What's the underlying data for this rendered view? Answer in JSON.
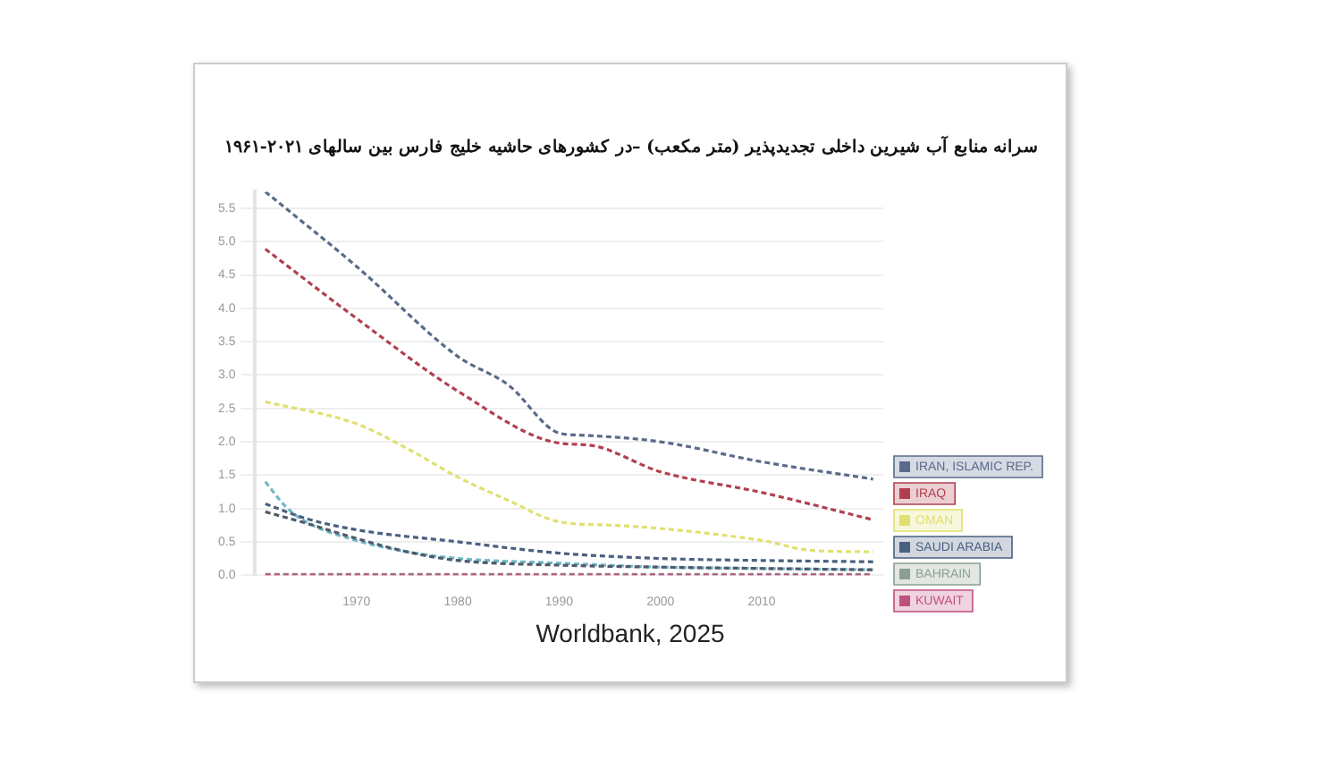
{
  "chart_data": {
    "type": "line",
    "title": "سرانه منابع آب شیرین داخلی تجدیدپذیر (متر مکعب) –در کشورهای حاشیه خلیج فارس  بین سالهای ۲۰۲۱-۱۹۶۱",
    "annotations": [
      "Worldbank, 2025"
    ],
    "xlim": [
      1960,
      2022
    ],
    "xticks": [
      1970,
      1980,
      1990,
      2000,
      2010
    ],
    "ylim": [
      0,
      5.75
    ],
    "yticks": [
      {
        "value": 0,
        "label": "0.0"
      },
      {
        "value": 0.5,
        "label": "0.5"
      },
      {
        "value": 1,
        "label": "1.0"
      },
      {
        "value": 1.5,
        "label": "1.5"
      },
      {
        "value": 2,
        "label": "2.0"
      },
      {
        "value": 2.5,
        "label": "2.5"
      },
      {
        "value": 3,
        "label": "3.0"
      },
      {
        "value": 3.5,
        "label": "3.5"
      },
      {
        "value": 4,
        "label": "4.0"
      },
      {
        "value": 4.5,
        "label": "4.5"
      },
      {
        "value": 5,
        "label": "5.0"
      },
      {
        "value": 5.5,
        "label": "5.5"
      }
    ],
    "grid": "y",
    "legend": "right",
    "marker": "none",
    "line_style": "dashed",
    "series": [
      {
        "name": "IRAN, ISLAMIC REP.",
        "color": "#5a6a8a",
        "x": [
          1961,
          1970,
          1980,
          1985,
          1990,
          1992,
          2000,
          2010,
          2021
        ],
        "values": [
          5.75,
          4.63,
          3.28,
          2.85,
          2.13,
          2.1,
          2.0,
          1.7,
          1.44
        ]
      },
      {
        "name": "IRAQ",
        "color": "#b04050",
        "x": [
          1961,
          1970,
          1980,
          1990,
          1993,
          2000,
          2010,
          2021
        ],
        "values": [
          4.89,
          3.85,
          2.76,
          1.98,
          1.95,
          1.55,
          1.24,
          0.83
        ]
      },
      {
        "name": "OMAN",
        "color": "#e0e070",
        "x": [
          1961,
          1970,
          1975,
          1980,
          1985,
          1990,
          1995,
          2000,
          2010,
          2015,
          2021
        ],
        "values": [
          2.6,
          2.27,
          1.9,
          1.47,
          1.12,
          0.8,
          0.75,
          0.7,
          0.52,
          0.37,
          0.35
        ]
      },
      {
        "color": "#70b8c8",
        "x": [
          1961,
          1963,
          1965,
          1970,
          1975,
          1980,
          1990,
          2000,
          2010,
          2021
        ],
        "values": [
          1.4,
          1.03,
          0.8,
          0.52,
          0.35,
          0.25,
          0.18,
          0.12,
          0.1,
          0.08
        ]
      },
      {
        "name": "SAUDI ARABIA",
        "color": "#4a6080",
        "x": [
          1961,
          1965,
          1970,
          1980,
          1990,
          2000,
          2010,
          2021
        ],
        "values": [
          1.07,
          0.85,
          0.68,
          0.5,
          0.33,
          0.25,
          0.22,
          0.2
        ]
      },
      {
        "color": "#505a6a",
        "x": [
          1961,
          1965,
          1970,
          1975,
          1980,
          1990,
          2000,
          2010,
          2021
        ],
        "values": [
          0.95,
          0.78,
          0.55,
          0.35,
          0.22,
          0.15,
          0.12,
          0.1,
          0.08
        ]
      },
      {
        "name": "BAHRAIN",
        "color": "#8aa090",
        "x": [
          1961,
          2021
        ],
        "values": [
          0.01,
          0.01
        ]
      },
      {
        "name": "KUWAIT",
        "color": "#c05080",
        "x": [
          1961,
          2021
        ],
        "values": [
          0,
          0
        ]
      }
    ]
  }
}
